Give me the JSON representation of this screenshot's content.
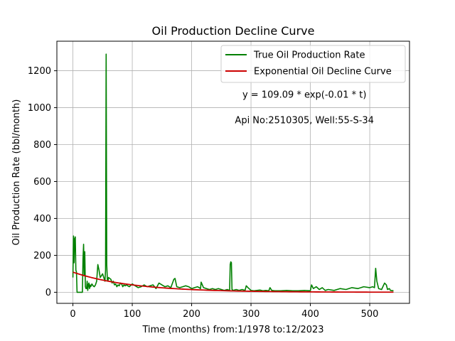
{
  "chart_data": {
    "type": "line",
    "title": "Oil Production Decline Curve",
    "xlabel": "Time (months) from:1/1978 to:12/2023",
    "ylabel": "Oil Production Rate (bbl/month)",
    "xlim": [
      -27,
      567
    ],
    "ylim": [
      -60,
      1360
    ],
    "xticks": [
      0,
      100,
      200,
      300,
      400,
      500
    ],
    "yticks": [
      0,
      200,
      400,
      600,
      800,
      1000,
      1200
    ],
    "grid": true,
    "legend_position": "upper right",
    "annotations": [
      {
        "text": "y = 109.09 * exp(-0.01 * t)",
        "x": 390,
        "y": 1070
      },
      {
        "text": "Api No:2510305, Well:55-S-34",
        "x": 390,
        "y": 930
      }
    ],
    "series": [
      {
        "name": "True Oil Production Rate",
        "color": "#008000",
        "x": [
          0,
          1,
          2,
          3,
          4,
          5,
          6,
          7,
          8,
          9,
          10,
          11,
          12,
          13,
          14,
          15,
          16,
          17,
          18,
          19,
          20,
          21,
          22,
          23,
          24,
          25,
          26,
          27,
          28,
          29,
          30,
          32,
          34,
          36,
          38,
          40,
          42,
          44,
          46,
          48,
          50,
          52,
          54,
          55,
          56,
          57,
          58,
          59,
          60,
          62,
          64,
          66,
          68,
          70,
          72,
          74,
          76,
          78,
          80,
          82,
          84,
          86,
          88,
          90,
          95,
          100,
          105,
          110,
          115,
          120,
          125,
          130,
          135,
          140,
          145,
          150,
          155,
          160,
          165,
          170,
          172,
          175,
          180,
          185,
          190,
          195,
          200,
          205,
          210,
          215,
          216,
          220,
          225,
          230,
          235,
          240,
          245,
          250,
          255,
          260,
          264,
          265,
          266,
          267,
          268,
          270,
          275,
          280,
          285,
          290,
          292,
          295,
          300,
          305,
          310,
          315,
          320,
          325,
          330,
          332,
          335,
          340,
          350,
          360,
          370,
          380,
          390,
          400,
          402,
          405,
          410,
          415,
          420,
          425,
          430,
          440,
          450,
          460,
          470,
          480,
          490,
          500,
          505,
          508,
          510,
          512,
          515,
          520,
          525,
          528,
          530,
          533,
          535,
          540
        ],
        "y": [
          80,
          305,
          160,
          290,
          300,
          120,
          110,
          0,
          0,
          0,
          0,
          0,
          0,
          0,
          0,
          0,
          0,
          180,
          260,
          90,
          220,
          30,
          20,
          20,
          60,
          10,
          40,
          50,
          20,
          40,
          30,
          45,
          35,
          30,
          40,
          60,
          150,
          120,
          80,
          90,
          100,
          80,
          60,
          120,
          1290,
          150,
          70,
          60,
          80,
          75,
          70,
          50,
          60,
          40,
          45,
          30,
          40,
          35,
          50,
          45,
          30,
          40,
          35,
          40,
          30,
          45,
          35,
          25,
          30,
          40,
          30,
          35,
          40,
          20,
          50,
          40,
          30,
          35,
          25,
          70,
          75,
          30,
          25,
          30,
          35,
          30,
          20,
          25,
          30,
          20,
          55,
          25,
          20,
          15,
          20,
          15,
          20,
          15,
          10,
          15,
          10,
          150,
          165,
          160,
          15,
          10,
          15,
          10,
          15,
          10,
          35,
          25,
          10,
          8,
          10,
          12,
          8,
          10,
          8,
          25,
          10,
          8,
          8,
          10,
          8,
          8,
          10,
          8,
          40,
          20,
          30,
          15,
          25,
          10,
          15,
          10,
          20,
          15,
          25,
          20,
          30,
          25,
          30,
          25,
          130,
          60,
          20,
          15,
          50,
          40,
          15,
          20,
          10,
          8
        ]
      },
      {
        "name": "Exponential Oil Decline Curve",
        "color": "#cc0000",
        "fit": {
          "a": 109.09,
          "b": -0.01
        },
        "x": [
          0,
          50,
          100,
          150,
          200,
          250,
          300,
          350,
          400,
          450,
          500,
          540
        ],
        "y": [
          109.09,
          66.2,
          40.1,
          24.3,
          14.8,
          8.96,
          5.43,
          3.29,
          2.0,
          1.21,
          0.74,
          0.49
        ]
      }
    ]
  }
}
